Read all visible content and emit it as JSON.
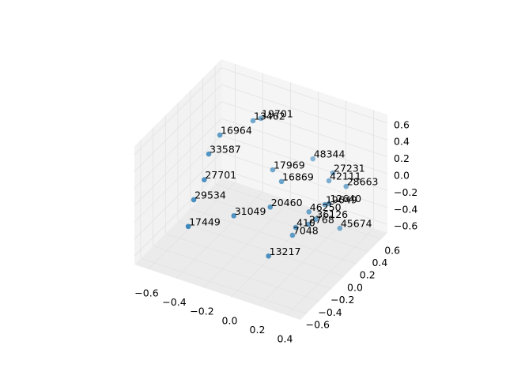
{
  "chart_data": {
    "type": "scatter3d",
    "color": "#1f77b4",
    "labels": [
      "19701",
      "13462",
      "16964",
      "33587",
      "17969",
      "48344",
      "16869",
      "27231",
      "42111",
      "28663",
      "27701",
      "29534",
      "20460",
      "19649",
      "12640",
      "46250",
      "36126",
      "2768",
      "410",
      "7048",
      "45674",
      "31049",
      "17449",
      "13217"
    ],
    "x": [
      -0.257,
      -0.287,
      -0.435,
      -0.438,
      -0.143,
      0.015,
      -0.032,
      0.2,
      0.221,
      0.345,
      -0.46,
      -0.5,
      -0.046,
      0.237,
      0.254,
      0.144,
      0.175,
      0.162,
      0.111,
      0.09,
      0.309,
      -0.242,
      -0.477,
      0.027
    ],
    "y": [
      0.35,
      0.289,
      0.085,
      -0.087,
      0.286,
      0.58,
      0.18,
      0.49,
      0.38,
      0.38,
      -0.11,
      -0.19,
      0.03,
      0.28,
      0.31,
      0.23,
      0.27,
      0.18,
      0.09,
      0.085,
      0.36,
      -0.12,
      -0.33,
      -0.16
    ],
    "z": [
      0.5,
      0.5,
      0.4,
      0.3,
      0,
      0,
      0,
      0,
      0,
      0,
      0,
      -0.2,
      -0.2,
      -0.2,
      -0.2,
      -0.3,
      -0.4,
      -0.4,
      -0.4,
      -0.5,
      -0.5,
      -0.3,
      -0.4,
      -0.6
    ],
    "xlim": [
      -0.7,
      0.5
    ],
    "ylim": [
      -0.7,
      0.7
    ],
    "zlim": [
      -0.7,
      0.7
    ],
    "xticks": [
      {
        "value": -0.6,
        "label": "−0.6"
      },
      {
        "value": -0.4,
        "label": "−0.4"
      },
      {
        "value": -0.2,
        "label": "−0.2"
      },
      {
        "value": 0,
        "label": "0.0"
      },
      0.2,
      0.4
    ],
    "yticks": [
      {
        "value": -0.6,
        "label": "−0.6"
      },
      {
        "value": -0.4,
        "label": "−0.4"
      },
      {
        "value": -0.2,
        "label": "−0.2"
      },
      {
        "value": 0,
        "label": "0.0"
      },
      0.2,
      0.4,
      0.6
    ],
    "zticks": [
      {
        "value": -0.6,
        "label": "−0.6"
      },
      {
        "value": -0.4,
        "label": "−0.4"
      },
      {
        "value": -0.2,
        "label": "−0.2"
      },
      {
        "value": 0,
        "label": "0.0"
      },
      0.2,
      0.4,
      0.6
    ],
    "grid": true
  }
}
